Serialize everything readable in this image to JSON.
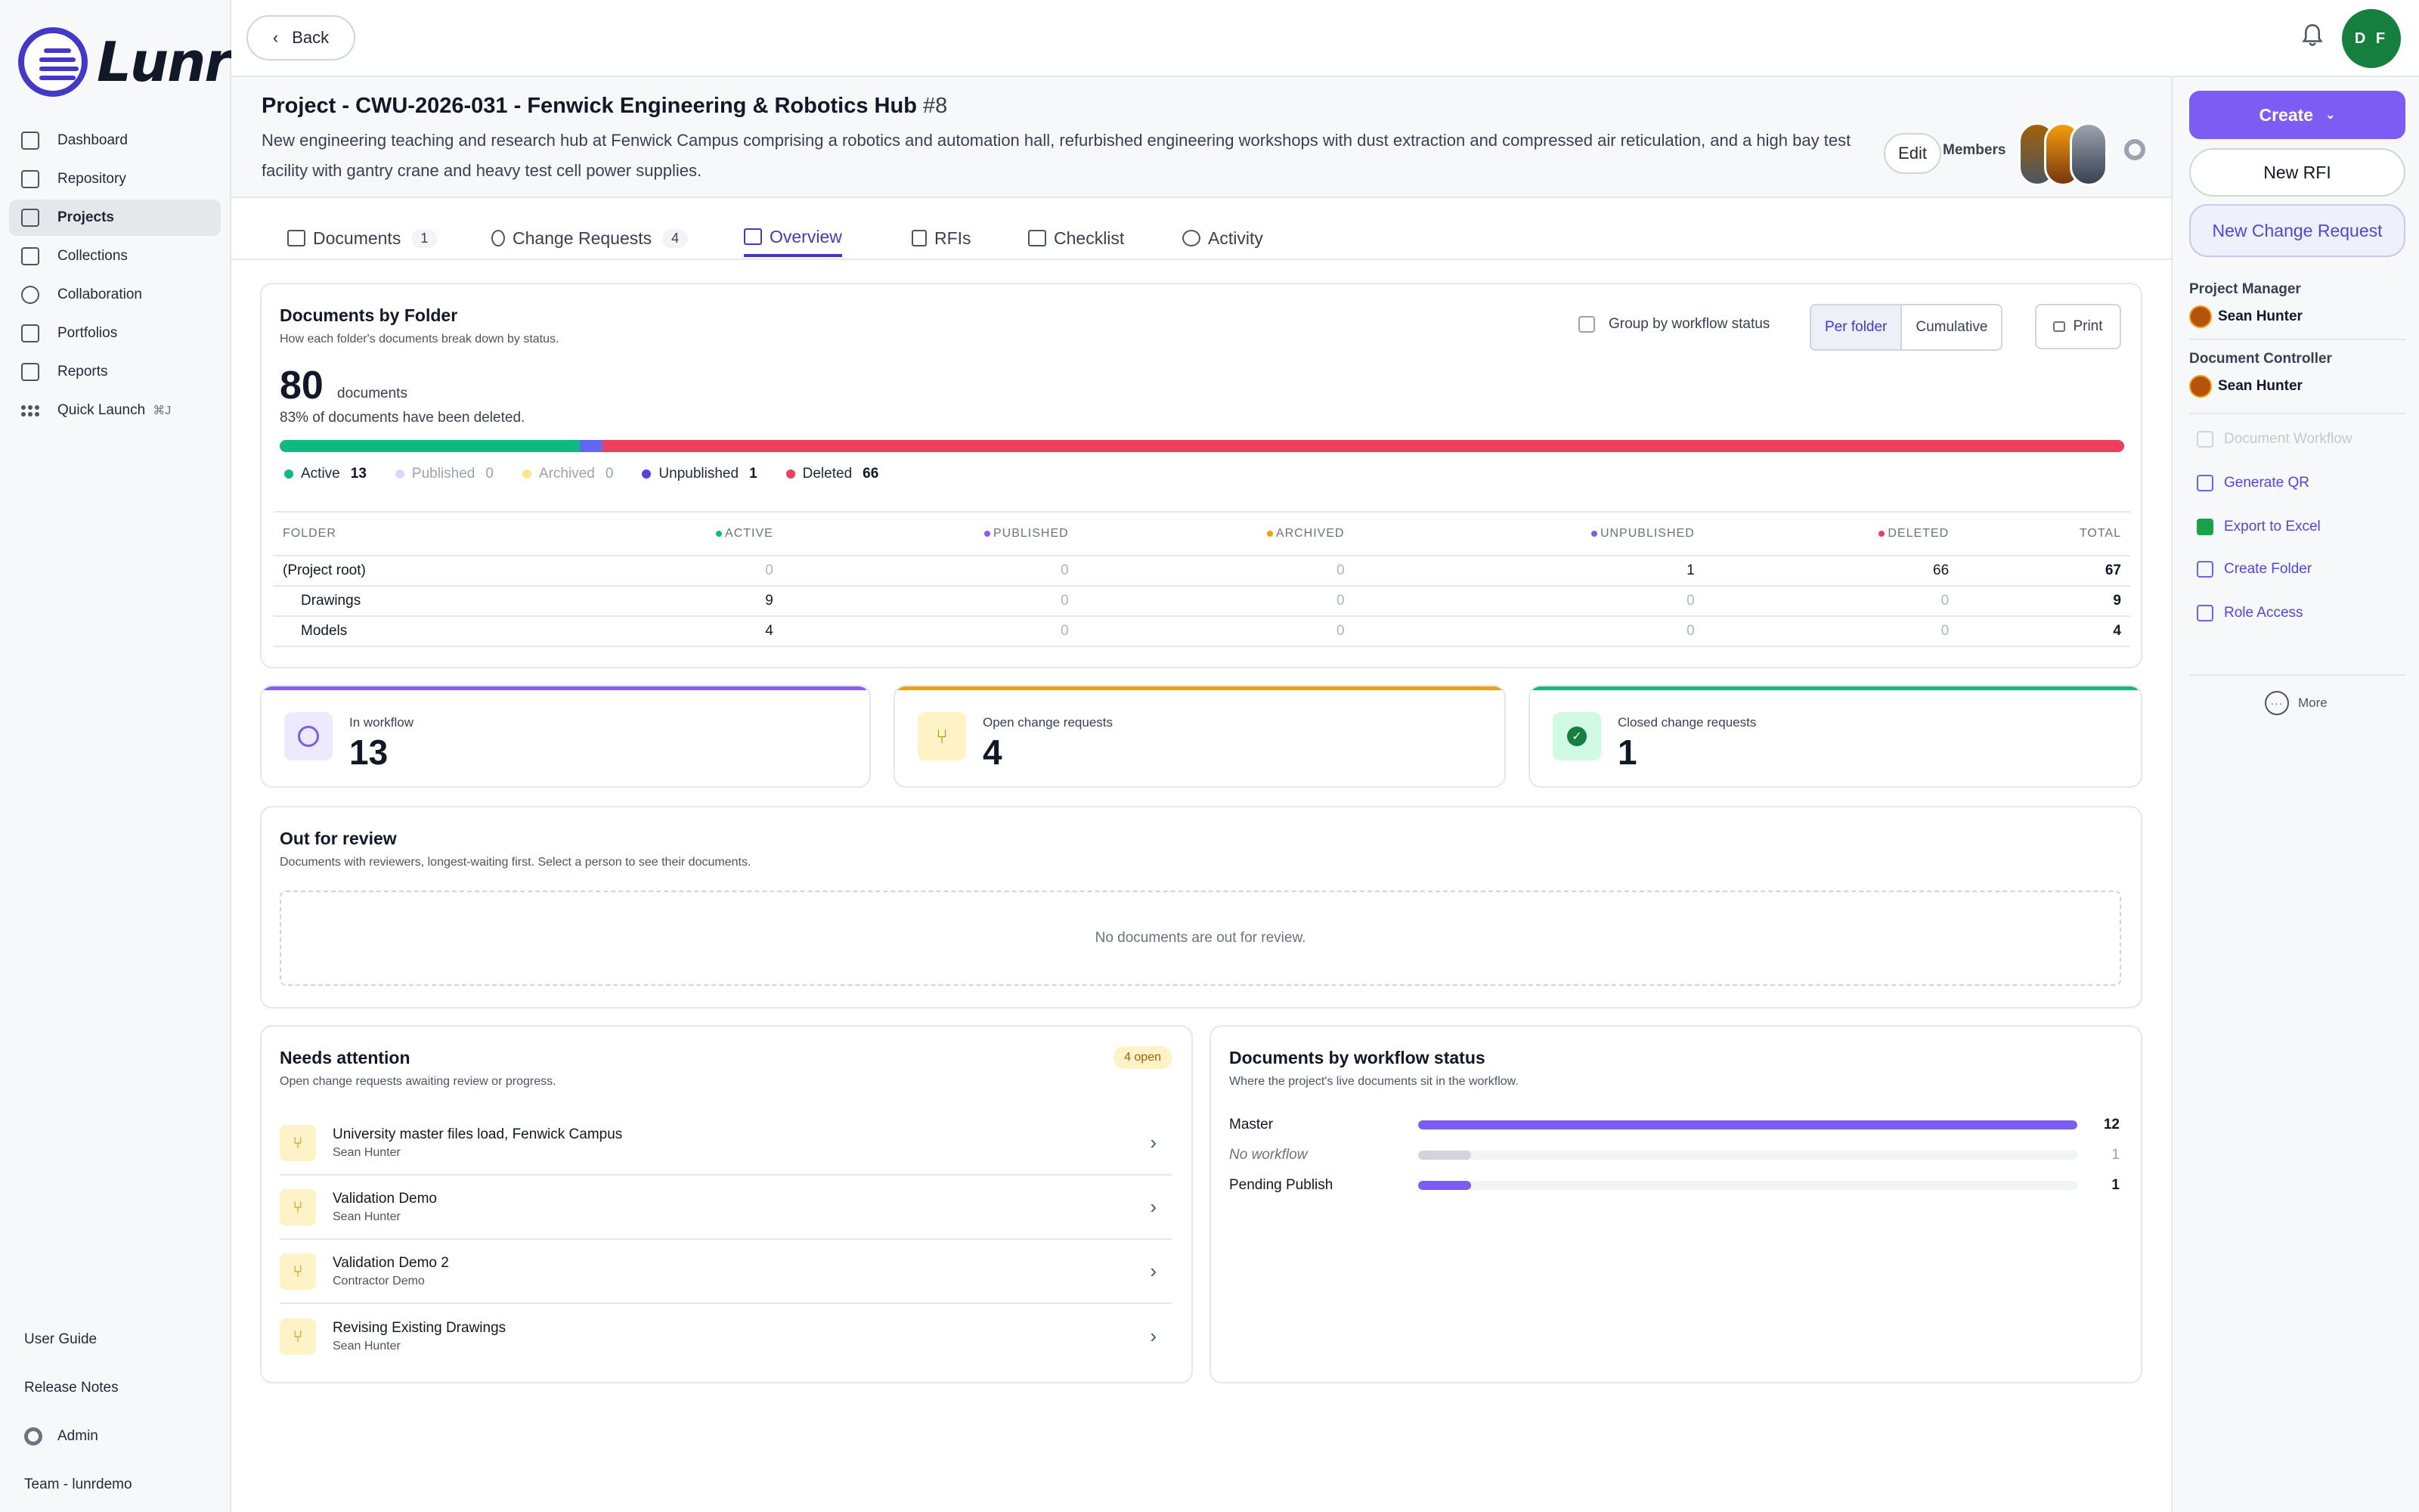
{
  "app": {
    "brand": "Lunr"
  },
  "sidebar": {
    "items": [
      {
        "label": "Dashboard",
        "icon": "chart-icon"
      },
      {
        "label": "Repository",
        "icon": "archive-icon"
      },
      {
        "label": "Projects",
        "icon": "folder-icon"
      },
      {
        "label": "Collections",
        "icon": "stack-icon"
      },
      {
        "label": "Collaboration",
        "icon": "share-icon"
      },
      {
        "label": "Portfolios",
        "icon": "building-icon"
      },
      {
        "label": "Reports",
        "icon": "report-icon"
      },
      {
        "label": "Quick Launch",
        "icon": "grid-dots-icon",
        "shortcut": "⌘J"
      }
    ],
    "active": "Projects",
    "bottom": {
      "guide": "User Guide",
      "notes": "Release Notes",
      "admin": "Admin",
      "team": "Team - lunrdemo"
    }
  },
  "topbar": {
    "back": "Back",
    "avatar_initials": "D F",
    "avatar_color": "#15803d"
  },
  "project": {
    "title": "Project - CWU-2026-031 - Fenwick Engineering & Robotics Hub",
    "number": "#8",
    "description": "New engineering teaching and research hub at Fenwick Campus comprising a robotics and automation hall, refurbished engineering workshops with dust extraction and compressed air reticulation, and a high bay test facility with gantry crane and heavy test cell power supplies.",
    "edit": "Edit",
    "members": "Members"
  },
  "tabs": [
    {
      "label": "Documents",
      "badge": "1"
    },
    {
      "label": "Change Requests",
      "badge": "4"
    },
    {
      "label": "Overview",
      "badge": ""
    },
    {
      "label": "RFIs",
      "badge": ""
    },
    {
      "label": "Checklist",
      "badge": ""
    },
    {
      "label": "Activity",
      "badge": ""
    }
  ],
  "active_tab": "Overview",
  "docs_by_folder": {
    "title": "Documents by Folder",
    "subtitle": "How each folder's documents break down by status.",
    "group_label": "Group by workflow status",
    "seg_per": "Per folder",
    "seg_cum": "Cumulative",
    "print": "Print",
    "total": "80",
    "unit": "documents",
    "deleted_note": "83% of documents have been deleted.",
    "bar": [
      {
        "status": "Active",
        "value": 13,
        "color": "#10b981"
      },
      {
        "status": "Unpublished",
        "value": 1,
        "color": "#6366f1"
      },
      {
        "status": "Deleted",
        "value": 66,
        "color": "#ef3e5c"
      }
    ],
    "legend": [
      {
        "label": "Active",
        "count": "13",
        "color": "#10b981",
        "muted": false
      },
      {
        "label": "Published",
        "count": "0",
        "color": "#ddd6fe",
        "muted": true
      },
      {
        "label": "Archived",
        "count": "0",
        "color": "#fde68a",
        "muted": true
      },
      {
        "label": "Unpublished",
        "count": "1",
        "color": "#4f46e5",
        "muted": false
      },
      {
        "label": "Deleted",
        "count": "66",
        "color": "#ef3e5c",
        "muted": false
      }
    ],
    "headers": [
      "FOLDER",
      "ACTIVE",
      "PUBLISHED",
      "ARCHIVED",
      "UNPUBLISHED",
      "DELETED",
      "TOTAL"
    ],
    "header_colors": [
      "",
      "#10b981",
      "#8b5cf6",
      "#f59e0b",
      "#6366f1",
      "#ef3e5c",
      ""
    ],
    "rows": [
      [
        "(Project root)",
        "0",
        "0",
        "0",
        "1",
        "66",
        "67"
      ],
      [
        "Drawings",
        "9",
        "0",
        "0",
        "0",
        "0",
        "9"
      ],
      [
        "Models",
        "4",
        "0",
        "0",
        "0",
        "0",
        "4"
      ]
    ]
  },
  "stats": [
    {
      "label": "In workflow",
      "value": "13",
      "color": "#8b5cf6",
      "icon": "clock-icon"
    },
    {
      "label": "Open change requests",
      "value": "4",
      "color": "#f59e0b",
      "icon": "branch-icon"
    },
    {
      "label": "Closed change requests",
      "value": "1",
      "color": "#10b981",
      "icon": "check-icon"
    }
  ],
  "review": {
    "title": "Out for review",
    "subtitle": "Documents with reviewers, longest-waiting first. Select a person to see their documents.",
    "empty": "No documents are out for review."
  },
  "attention": {
    "title": "Needs attention",
    "subtitle": "Open change requests awaiting review or progress.",
    "badge": "4 open",
    "items": [
      {
        "title": "University master files load, Fenwick Campus",
        "person": "Sean Hunter"
      },
      {
        "title": "Validation Demo",
        "person": "Sean Hunter"
      },
      {
        "title": "Validation Demo 2",
        "person": "Contractor Demo"
      },
      {
        "title": "Revising Existing Drawings",
        "person": "Sean Hunter"
      }
    ]
  },
  "workflow": {
    "title": "Documents by workflow status",
    "subtitle": "Where the project's live documents sit in the workflow.",
    "rows": [
      {
        "name": "Master",
        "value": "12",
        "fraction": 1.0,
        "color": "#7c5cf2",
        "italic": false
      },
      {
        "name": "No workflow",
        "value": "1",
        "fraction": 0.08,
        "color": "#d1d5db",
        "italic": true
      },
      {
        "name": "Pending Publish",
        "value": "1",
        "fraction": 0.08,
        "color": "#7c5cf2",
        "italic": false
      }
    ]
  },
  "right": {
    "create": "Create",
    "new_rfi": "New RFI",
    "new_cr": "New Change Request",
    "pm_title": "Project Manager",
    "pm": "Sean Hunter",
    "dc_title": "Document Controller",
    "dc": "Sean Hunter",
    "actions": [
      {
        "label": "Document Workflow",
        "disabled": true,
        "icon": "copy-icon"
      },
      {
        "label": "Generate QR",
        "disabled": false,
        "icon": "qr-icon"
      },
      {
        "label": "Export to Excel",
        "disabled": false,
        "icon": "excel-icon"
      },
      {
        "label": "Create Folder",
        "disabled": false,
        "icon": "folder-plus-icon"
      },
      {
        "label": "Role Access",
        "disabled": false,
        "icon": "users-icon"
      }
    ],
    "more": "More"
  }
}
